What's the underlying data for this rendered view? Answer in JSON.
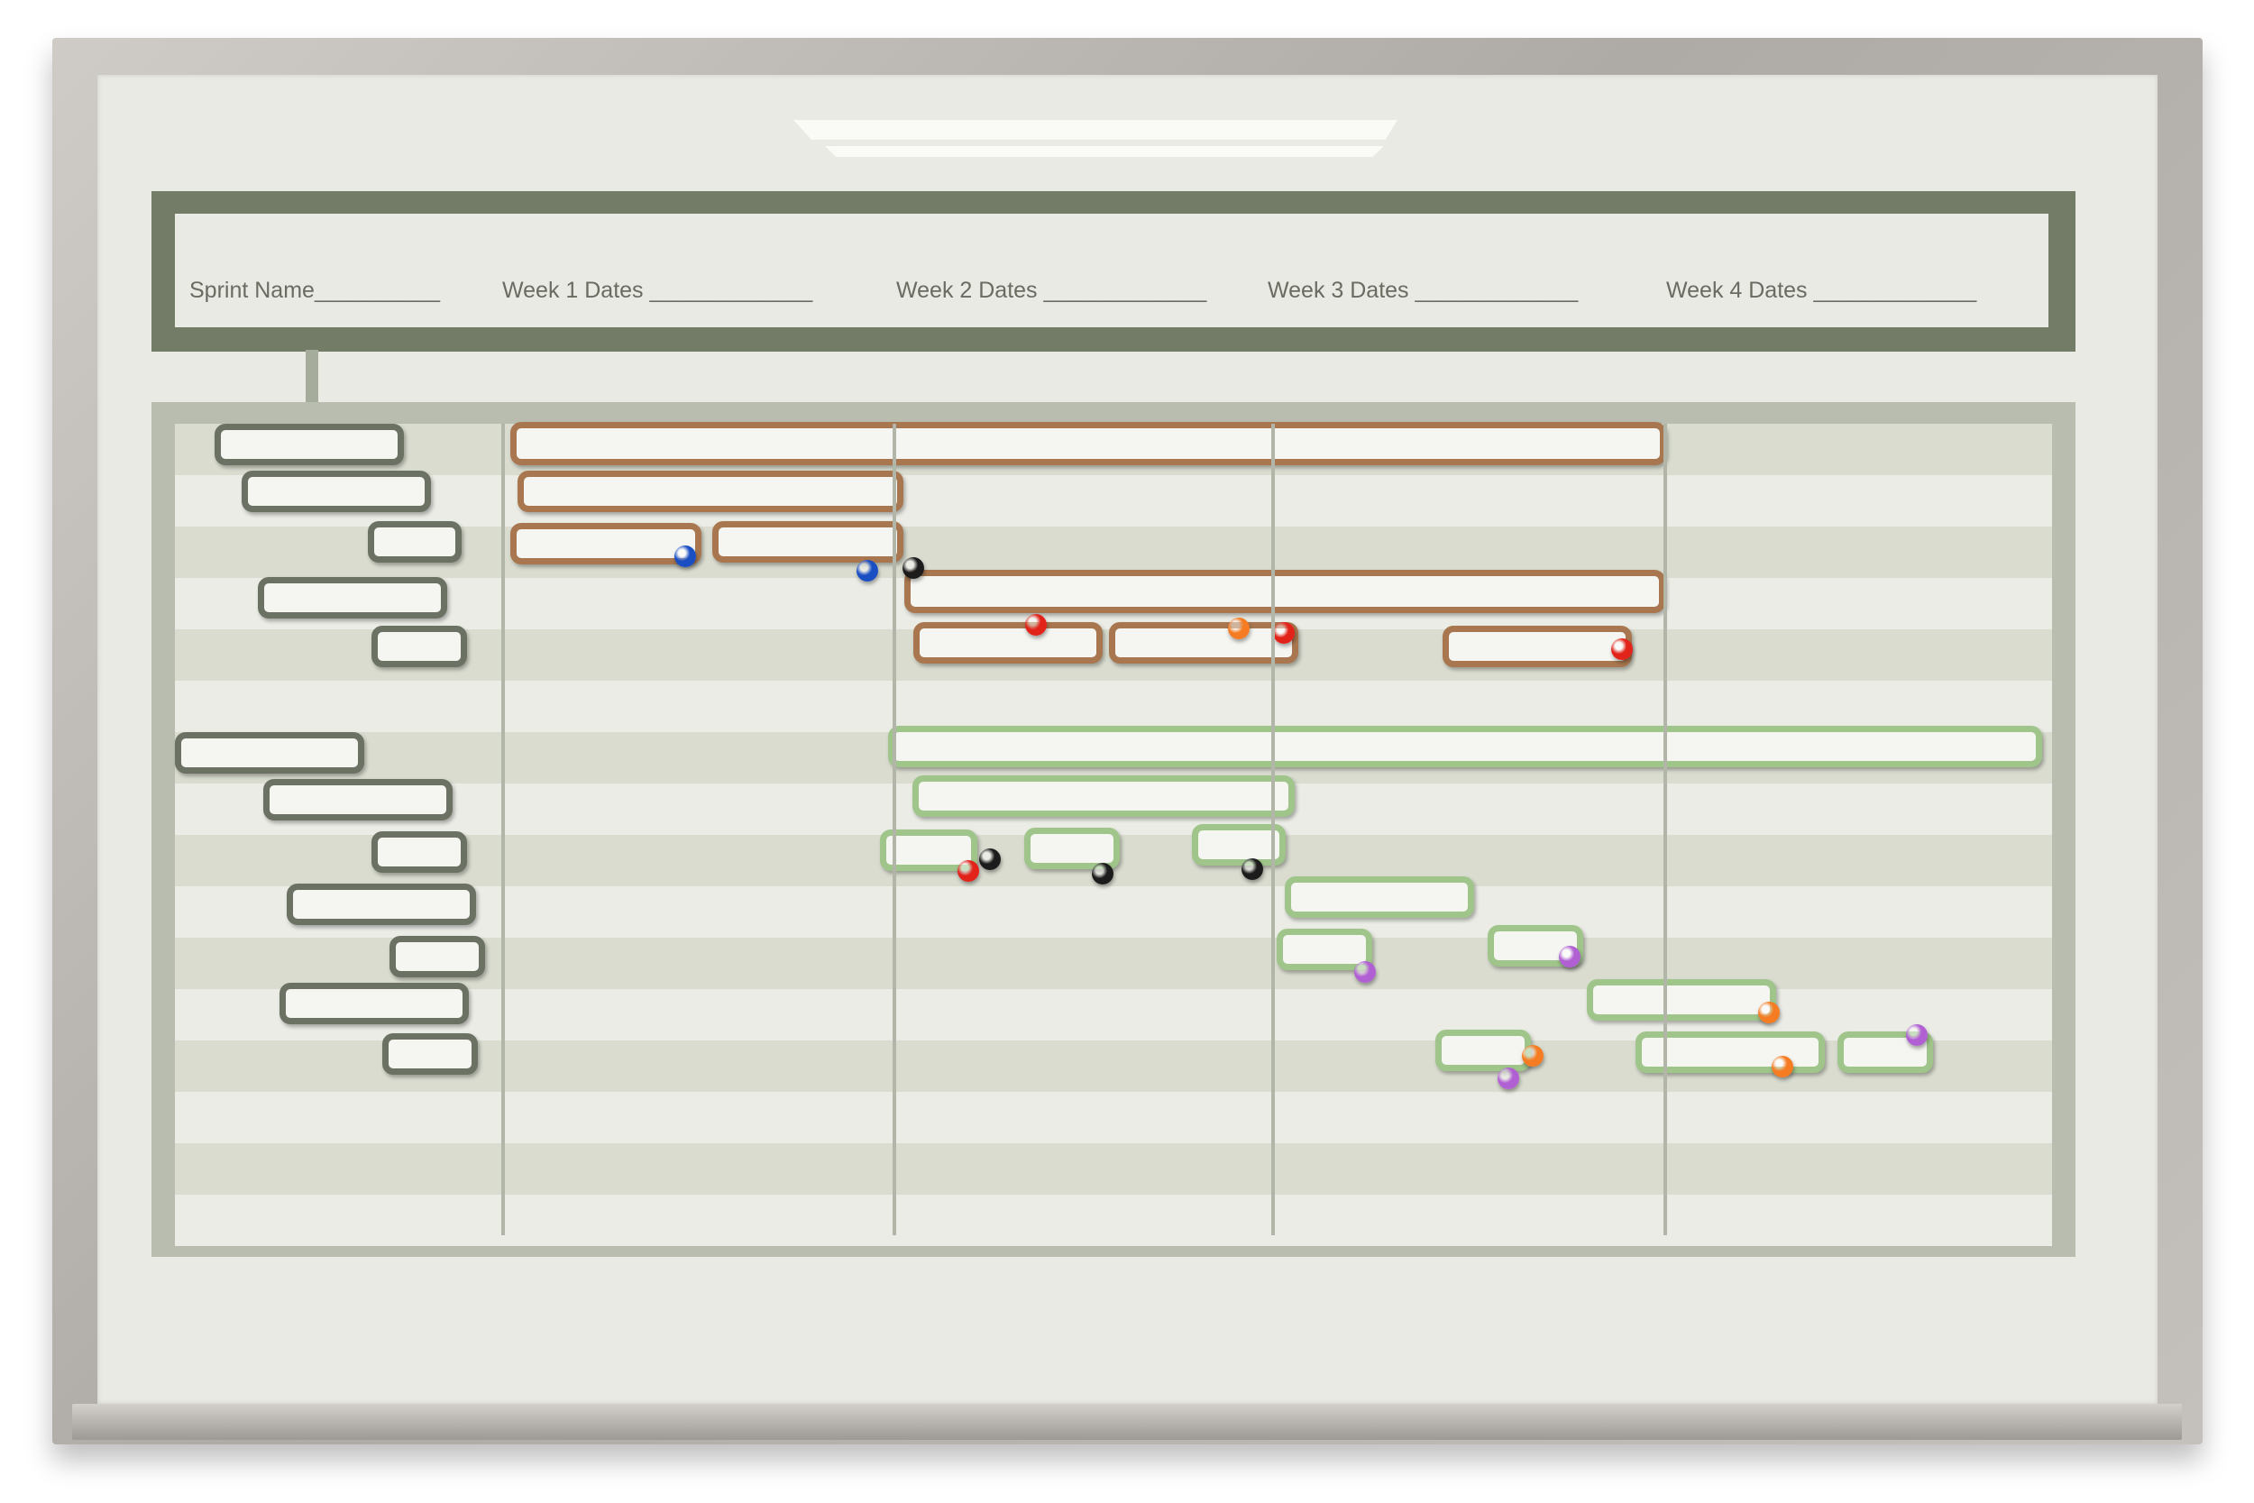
{
  "header": {
    "sprint_name": "Sprint Name__________",
    "week1": "Week 1 Dates _____________",
    "week2": "Week 2 Dates _____________",
    "week3": "Week 3 Dates _____________",
    "week4": "Week 4 Dates _____________"
  },
  "colors": {
    "frame": "#b3afab",
    "board": "#e9eae4",
    "header_band": "#727c67",
    "grid_frame": "#b9bdb0",
    "row_dark": "#d9dccf",
    "row_light": "#ebece6",
    "tile_grey": "#6b7163",
    "tile_brown": "#a8774f",
    "tile_green": "#9fc58a",
    "magnet_blue": "#1a4fc4",
    "magnet_black": "#1c1c1c",
    "magnet_red": "#e2231a",
    "magnet_orange": "#f57c22",
    "magnet_purple": "#b160d4"
  }
}
